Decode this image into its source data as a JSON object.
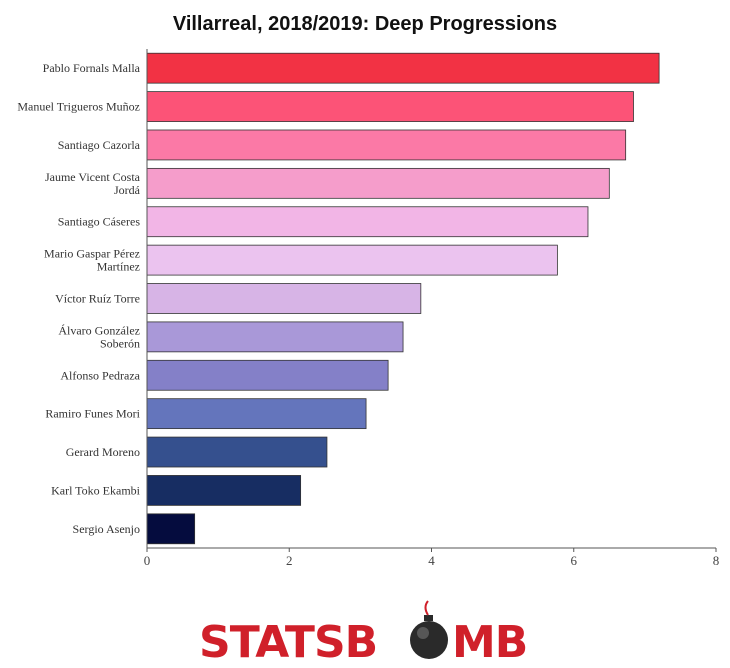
{
  "chart_data": {
    "type": "bar",
    "orientation": "horizontal",
    "title": "Villarreal, 2018/2019: Deep Progressions",
    "xlabel": "",
    "ylabel": "",
    "xlim": [
      0,
      8
    ],
    "xticks": [
      "0",
      "2",
      "4",
      "6",
      "8"
    ],
    "categories": [
      [
        "Pablo Fornals Malla"
      ],
      [
        "Manuel Trigueros Muñoz"
      ],
      [
        "Santiago Cazorla"
      ],
      [
        "Jaume Vicent Costa",
        "Jordá"
      ],
      [
        "Santiago Cáseres"
      ],
      [
        "Mario Gaspar Pérez",
        "Martínez"
      ],
      [
        "Víctor Ruíz Torre"
      ],
      [
        "Álvaro González",
        "Soberón"
      ],
      [
        "Alfonso Pedraza"
      ],
      [
        "Ramiro Funes Mori"
      ],
      [
        "Gerard Moreno"
      ],
      [
        "Karl Toko Ekambi"
      ],
      [
        "Sergio Asenjo"
      ]
    ],
    "values": [
      7.2,
      6.84,
      6.73,
      6.5,
      6.2,
      5.77,
      3.85,
      3.6,
      3.39,
      3.08,
      2.53,
      2.16,
      0.67
    ],
    "colors": [
      "#f23244",
      "#fc5377",
      "#fb79a6",
      "#f59dcb",
      "#f2b5e6",
      "#ebc3ef",
      "#d7b4e6",
      "#a998d8",
      "#8480c8",
      "#6475bc",
      "#35508e",
      "#172d62",
      "#050c3e"
    ],
    "grid": false,
    "legend": "none"
  },
  "logo": {
    "text_left": "STATSB",
    "text_right": "MB",
    "colors": {
      "red": "#d0202a",
      "bomb": "#2a2a2a"
    },
    "icon": "bomb-icon"
  }
}
